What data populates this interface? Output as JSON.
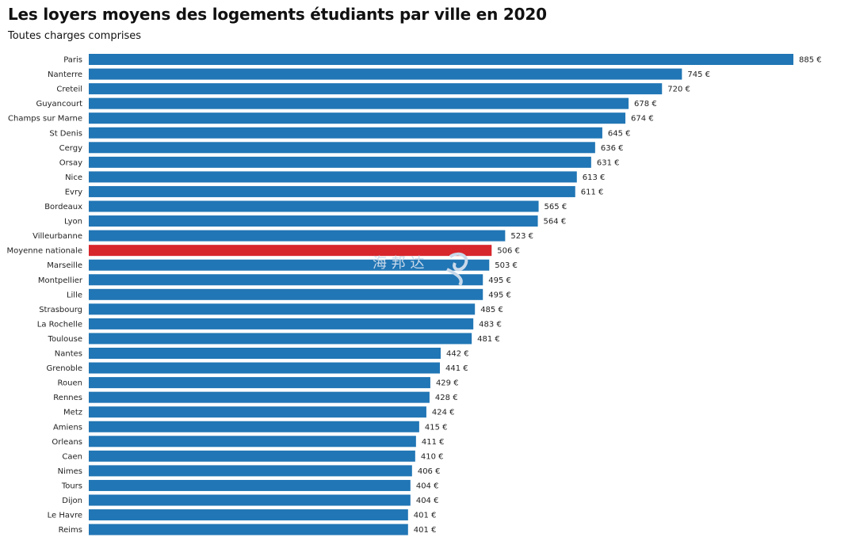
{
  "chart_data": {
    "type": "bar",
    "orientation": "horizontal",
    "title": "Les loyers moyens des logements étudiants par ville en 2020",
    "subtitle": "Toutes charges comprises",
    "unit_suffix": " €",
    "categories": [
      "Paris",
      "Nanterre",
      "Creteil",
      "Guyancourt",
      "Champs sur Marne",
      "St Denis",
      "Cergy",
      "Orsay",
      "Nice",
      "Evry",
      "Bordeaux",
      "Lyon",
      "Villeurbanne",
      "Moyenne nationale",
      "Marseille",
      "Montpellier",
      "Lille",
      "Strasbourg",
      "La Rochelle",
      "Toulouse",
      "Nantes",
      "Grenoble",
      "Rouen",
      "Rennes",
      "Metz",
      "Amiens",
      "Orleans",
      "Caen",
      "Nimes",
      "Tours",
      "Dijon",
      "Le Havre",
      "Reims"
    ],
    "values": [
      885,
      745,
      720,
      678,
      674,
      645,
      636,
      631,
      613,
      611,
      565,
      564,
      523,
      506,
      503,
      495,
      495,
      485,
      483,
      481,
      442,
      441,
      429,
      428,
      424,
      415,
      411,
      410,
      406,
      404,
      404,
      401,
      401
    ],
    "highlight_category": "Moyenne nationale",
    "colors": {
      "bar": "#2176b5",
      "highlight": "#d7262c"
    },
    "xlim": [
      0,
      885
    ],
    "grid": false,
    "legend": "none"
  }
}
